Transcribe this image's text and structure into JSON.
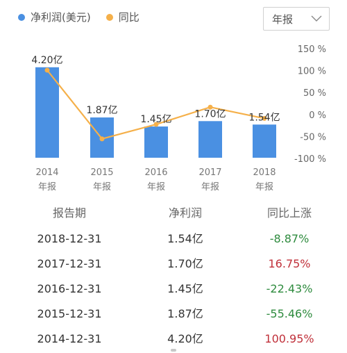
{
  "legend": {
    "bar_label": "净利润(美元)",
    "line_label": "同比",
    "bar_color": "#4a90e2",
    "line_color": "#f5b04a"
  },
  "period_select": {
    "value": "年报"
  },
  "chart_data": {
    "type": "bar",
    "categories": [
      "2014",
      "2015",
      "2016",
      "2017",
      "2018"
    ],
    "category_sublabel": "年报",
    "series": [
      {
        "name": "净利润(美元)",
        "type": "bar",
        "values": [
          4.2,
          1.87,
          1.45,
          1.7,
          1.54
        ],
        "labels": [
          "4.20亿",
          "1.87亿",
          "1.45亿",
          "1.70亿",
          "1.54亿"
        ]
      },
      {
        "name": "同比",
        "type": "line",
        "values": [
          100.95,
          -55.46,
          -22.43,
          16.75,
          -8.87
        ]
      }
    ],
    "y_right_ticks": [
      "150 %",
      "100 %",
      "50 %",
      "0 %",
      "-50 %",
      "-100 %"
    ],
    "y_right_range": [
      -100,
      150
    ],
    "colors": {
      "bar": "#4a90e2",
      "line": "#f5b04a"
    },
    "grid": false
  },
  "table": {
    "headers": [
      "报告期",
      "净利润",
      "同比上涨"
    ],
    "rows": [
      {
        "date": "2018-12-31",
        "profit": "1.54亿",
        "change": "-8.87%",
        "dir": "neg"
      },
      {
        "date": "2017-12-31",
        "profit": "1.70亿",
        "change": "16.75%",
        "dir": "pos"
      },
      {
        "date": "2016-12-31",
        "profit": "1.45亿",
        "change": "-22.43%",
        "dir": "neg"
      },
      {
        "date": "2015-12-31",
        "profit": "1.87亿",
        "change": "-55.46%",
        "dir": "neg"
      },
      {
        "date": "2014-12-31",
        "profit": "4.20亿",
        "change": "100.95%",
        "dir": "pos"
      }
    ],
    "colors": {
      "positive": "#c0303a",
      "negative": "#2e8b3e"
    }
  }
}
